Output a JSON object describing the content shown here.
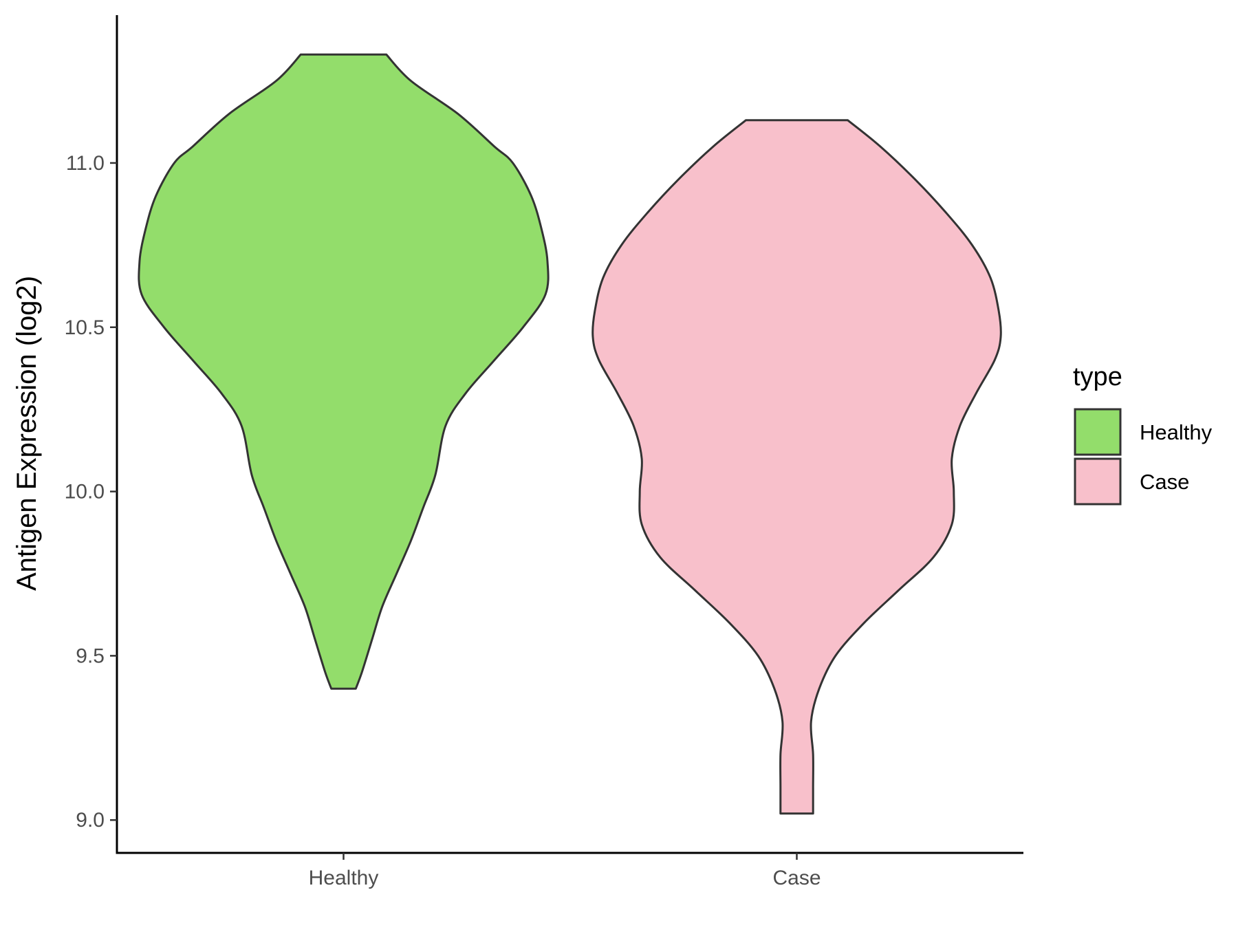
{
  "chart_data": {
    "type": "violin",
    "title": "",
    "xlabel": "",
    "ylabel": "Antigen Expression (log2)",
    "categories": [
      "Healthy",
      "Case"
    ],
    "ylim": [
      8.9,
      11.45
    ],
    "yticks": [
      9.0,
      9.5,
      10.0,
      10.5,
      11.0
    ],
    "ytick_labels": [
      "9.0",
      "9.5",
      "10.0",
      "10.5",
      "11.0"
    ],
    "grid": false,
    "legend": {
      "title": "type",
      "position": "right",
      "entries": [
        "Healthy",
        "Case"
      ]
    },
    "colors": {
      "Healthy": "#93dd6b",
      "Case": "#f8c0cb",
      "outline": "#333333",
      "axis": "#000000"
    },
    "series": [
      {
        "name": "Healthy",
        "min": 9.4,
        "max": 11.33,
        "density_profile": [
          [
            11.33,
            0.21
          ],
          [
            11.25,
            0.33
          ],
          [
            11.15,
            0.56
          ],
          [
            11.05,
            0.74
          ],
          [
            11.0,
            0.83
          ],
          [
            10.9,
            0.92
          ],
          [
            10.8,
            0.97
          ],
          [
            10.7,
            1.0
          ],
          [
            10.6,
            0.99
          ],
          [
            10.5,
            0.88
          ],
          [
            10.4,
            0.74
          ],
          [
            10.3,
            0.6
          ],
          [
            10.2,
            0.5
          ],
          [
            10.05,
            0.45
          ],
          [
            9.95,
            0.39
          ],
          [
            9.85,
            0.33
          ],
          [
            9.75,
            0.26
          ],
          [
            9.65,
            0.19
          ],
          [
            9.55,
            0.14
          ],
          [
            9.45,
            0.09
          ],
          [
            9.4,
            0.06
          ]
        ]
      },
      {
        "name": "Case",
        "min": 9.02,
        "max": 11.13,
        "density_profile": [
          [
            11.13,
            0.25
          ],
          [
            11.05,
            0.41
          ],
          [
            10.95,
            0.58
          ],
          [
            10.85,
            0.73
          ],
          [
            10.75,
            0.86
          ],
          [
            10.65,
            0.95
          ],
          [
            10.55,
            0.99
          ],
          [
            10.47,
            1.0
          ],
          [
            10.4,
            0.97
          ],
          [
            10.3,
            0.88
          ],
          [
            10.2,
            0.8
          ],
          [
            10.1,
            0.76
          ],
          [
            10.0,
            0.77
          ],
          [
            9.9,
            0.76
          ],
          [
            9.8,
            0.67
          ],
          [
            9.7,
            0.5
          ],
          [
            9.6,
            0.33
          ],
          [
            9.5,
            0.19
          ],
          [
            9.4,
            0.11
          ],
          [
            9.3,
            0.07
          ],
          [
            9.2,
            0.08
          ],
          [
            9.1,
            0.08
          ],
          [
            9.02,
            0.08
          ]
        ]
      }
    ]
  }
}
